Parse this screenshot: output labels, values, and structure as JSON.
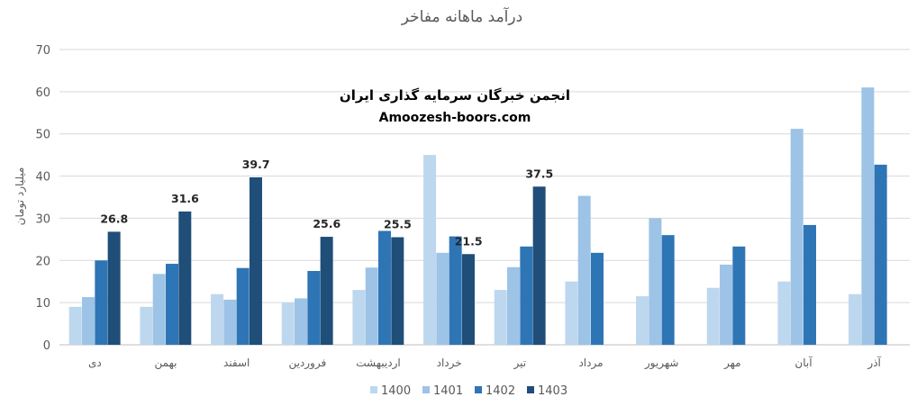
{
  "chart_data": {
    "type": "bar",
    "title": "درآمد ماهانه مفاخر",
    "ylabel": "میلیارد تومان",
    "xlabel": "",
    "ylim": [
      0,
      70
    ],
    "yticks": [
      0,
      10,
      20,
      30,
      40,
      50,
      60,
      70
    ],
    "grid": true,
    "legend_position": "bottom",
    "categories": [
      "دی",
      "بهمن",
      "اسفند",
      "فروردین",
      "اردیبهشت",
      "خرداد",
      "تیر",
      "مرداد",
      "شهریور",
      "مهر",
      "آبان",
      "آذر"
    ],
    "series": [
      {
        "name": "1400",
        "color": "#bdd7ee",
        "values": [
          9.0,
          9.0,
          12.0,
          10.0,
          13.0,
          45.0,
          13.0,
          15.0,
          11.5,
          13.5,
          15.0,
          12.0
        ]
      },
      {
        "name": "1401",
        "color": "#9dc3e6",
        "values": [
          11.3,
          16.8,
          10.7,
          11.0,
          18.3,
          21.8,
          18.4,
          35.3,
          30.0,
          19.0,
          51.2,
          61.0
        ]
      },
      {
        "name": "1402",
        "color": "#2e75b6",
        "values": [
          20.0,
          19.2,
          18.2,
          17.5,
          27.0,
          25.7,
          23.3,
          21.8,
          26.0,
          23.3,
          28.4,
          42.7
        ]
      },
      {
        "name": "1403",
        "color": "#1f4e79",
        "values": [
          26.8,
          31.6,
          39.7,
          25.6,
          25.5,
          21.5,
          37.5,
          null,
          null,
          null,
          null,
          null
        ]
      }
    ],
    "data_labels": {
      "series": "1403",
      "values": [
        "26.8",
        "31.6",
        "39.7",
        "25.6",
        "25.5",
        "21.5",
        "37.5"
      ]
    }
  },
  "watermark": {
    "line1": "انجمن خبرگان سرمایه گذاری ایران",
    "line2": "Amoozesh-boors.com"
  }
}
